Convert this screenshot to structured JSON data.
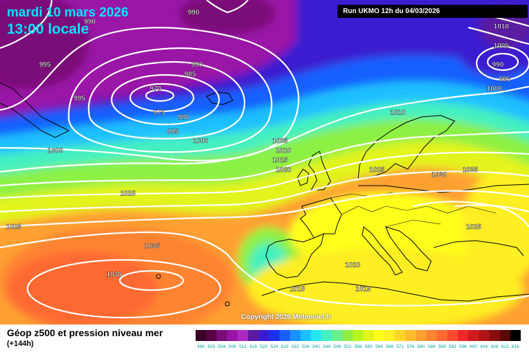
{
  "header": {
    "date_label": "mardi 10 mars 2026",
    "time_label": "13:00 locale",
    "run_label": "Run UKMO 12h du 04/03/2026"
  },
  "map_labels": [
    {
      "text": "990",
      "lon": -37,
      "lat": 73
    },
    {
      "text": "990",
      "lon": -67,
      "lat": 71
    },
    {
      "text": "1010",
      "lon": 52,
      "lat": 70
    },
    {
      "text": "1005",
      "lon": 52,
      "lat": 66
    },
    {
      "text": "990",
      "lon": 51,
      "lat": 62
    },
    {
      "text": "995",
      "lon": 53,
      "lat": 59
    },
    {
      "text": "1000",
      "lon": 50,
      "lat": 57
    },
    {
      "text": "990",
      "lon": -36,
      "lat": 62
    },
    {
      "text": "985",
      "lon": -38,
      "lat": 60
    },
    {
      "text": "970",
      "lon": -48,
      "lat": 57
    },
    {
      "text": "975",
      "lon": -47,
      "lat": 52
    },
    {
      "text": "980",
      "lon": -40,
      "lat": 51
    },
    {
      "text": "995",
      "lon": -80,
      "lat": 62
    },
    {
      "text": "995",
      "lon": -70,
      "lat": 55
    },
    {
      "text": "995",
      "lon": -43,
      "lat": 48
    },
    {
      "text": "1000",
      "lon": -35,
      "lat": 46
    },
    {
      "text": "1000",
      "lon": -77,
      "lat": 44
    },
    {
      "text": "1010",
      "lon": 22,
      "lat": 52
    },
    {
      "text": "1005",
      "lon": -12,
      "lat": 46
    },
    {
      "text": "1010",
      "lon": -11,
      "lat": 44
    },
    {
      "text": "1015",
      "lon": -12,
      "lat": 42
    },
    {
      "text": "1020",
      "lon": -11,
      "lat": 40
    },
    {
      "text": "1025",
      "lon": 16,
      "lat": 40
    },
    {
      "text": "1030",
      "lon": 34,
      "lat": 39
    },
    {
      "text": "1035",
      "lon": 43,
      "lat": 40
    },
    {
      "text": "1025",
      "lon": -56,
      "lat": 35
    },
    {
      "text": "1025",
      "lon": -89,
      "lat": 28
    },
    {
      "text": "1035",
      "lon": -49,
      "lat": 24
    },
    {
      "text": "1030",
      "lon": -60,
      "lat": 18
    },
    {
      "text": "1025",
      "lon": 44,
      "lat": 28
    },
    {
      "text": "1020",
      "lon": 9,
      "lat": 20
    },
    {
      "text": "1015",
      "lon": -7,
      "lat": 15
    },
    {
      "text": "1015",
      "lon": 12,
      "lat": 15
    }
  ],
  "copyright": "Copyright 2026 Meteociel.fr",
  "footer": {
    "title": "Géop z500 et pression niveau mer",
    "subtitle": "(+144h)"
  },
  "legend": {
    "ticks": [
      "496",
      "500",
      "504",
      "508",
      "512",
      "516",
      "520",
      "524",
      "528",
      "532",
      "536",
      "540",
      "544",
      "548",
      "552",
      "556",
      "560",
      "564",
      "568",
      "572",
      "576",
      "580",
      "584",
      "588",
      "592",
      "596",
      "600",
      "604",
      "608",
      "612",
      "616"
    ],
    "colors": [
      "#3a0028",
      "#560046",
      "#7a0c78",
      "#9a14a6",
      "#b028c4",
      "#5a1aa0",
      "#3a1ad0",
      "#1a30f0",
      "#1860ff",
      "#1892ff",
      "#1ac0ff",
      "#22e6f0",
      "#44f0c0",
      "#6af08a",
      "#8cf044",
      "#b8f41e",
      "#e2f41c",
      "#ffff1e",
      "#ffee22",
      "#ffd628",
      "#ffbc2c",
      "#ffa030",
      "#ff8432",
      "#ff6a32",
      "#ff4a2e",
      "#f02828",
      "#d01a1e",
      "#b01416",
      "#8a0e0e",
      "#5a0808",
      "#000000"
    ]
  }
}
